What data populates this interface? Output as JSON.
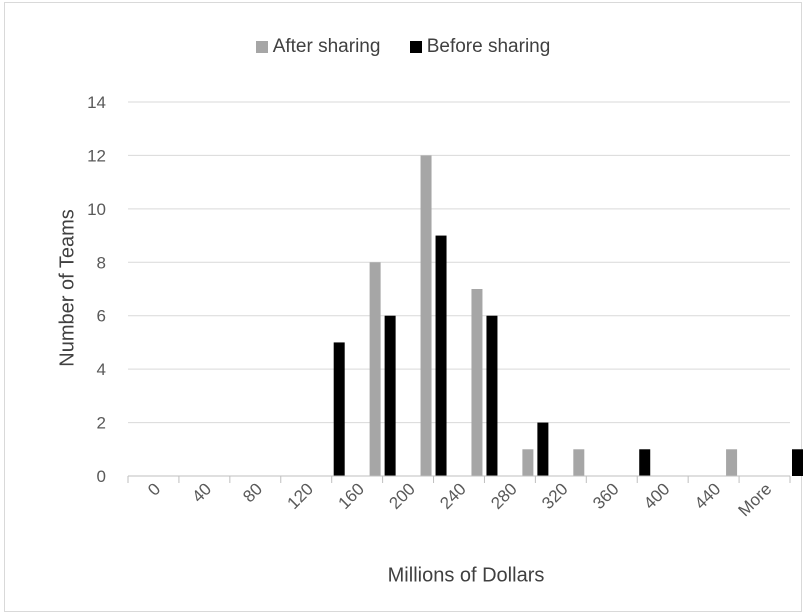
{
  "chart_data": {
    "type": "bar",
    "categories": [
      "0",
      "40",
      "80",
      "120",
      "160",
      "200",
      "240",
      "280",
      "320",
      "360",
      "400",
      "440",
      "More"
    ],
    "series": [
      {
        "name": "After sharing",
        "color": "#a6a6a6",
        "values": [
          0,
          0,
          0,
          0,
          8,
          12,
          7,
          1,
          1,
          0,
          0,
          1,
          0
        ]
      },
      {
        "name": "Before sharing",
        "color": "#000000",
        "values": [
          0,
          0,
          0,
          5,
          6,
          9,
          6,
          2,
          0,
          1,
          0,
          0,
          1
        ]
      }
    ],
    "y_ticks": [
      "0",
      "2",
      "4",
      "6",
      "8",
      "10",
      "12",
      "14"
    ],
    "ylim": [
      0,
      14
    ],
    "xlabel": "Millions of Dollars",
    "ylabel": "Number of Teams",
    "legend_position": "top",
    "grid": true,
    "data_labels": false
  }
}
